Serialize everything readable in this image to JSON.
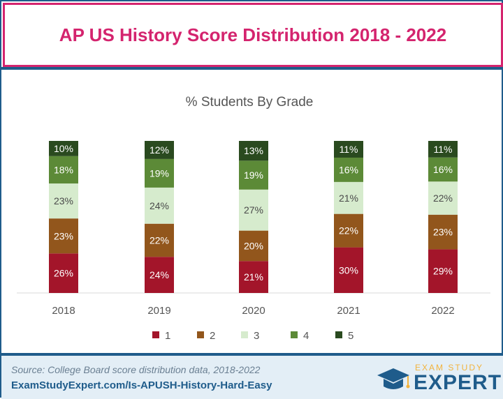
{
  "header": {
    "title": "AP US History Score Distribution 2018 - 2022"
  },
  "chart_data": {
    "type": "bar",
    "stacked": true,
    "title": "% Students By Grade",
    "categories": [
      "2018",
      "2019",
      "2020",
      "2021",
      "2022"
    ],
    "series": [
      {
        "name": "1",
        "color": "#a3152a",
        "values": [
          26,
          24,
          21,
          30,
          29
        ]
      },
      {
        "name": "2",
        "color": "#92561c",
        "values": [
          23,
          22,
          20,
          22,
          23
        ]
      },
      {
        "name": "3",
        "color": "#d6ebcd",
        "values": [
          23,
          24,
          27,
          21,
          22
        ]
      },
      {
        "name": "4",
        "color": "#5c8a37",
        "values": [
          18,
          19,
          19,
          16,
          16
        ]
      },
      {
        "name": "5",
        "color": "#2a4a1f",
        "values": [
          10,
          12,
          13,
          11,
          11
        ]
      }
    ],
    "value_suffix": "%",
    "legend_position": "bottom",
    "ylim": [
      0,
      100
    ]
  },
  "footer": {
    "source": "Source: College Board score distribution data, 2018-2022",
    "url": "ExamStudyExpert.com/Is-APUSH-History-Hard-Easy"
  },
  "logo": {
    "top": "EXAM STUDY",
    "main": "EXPERT"
  }
}
